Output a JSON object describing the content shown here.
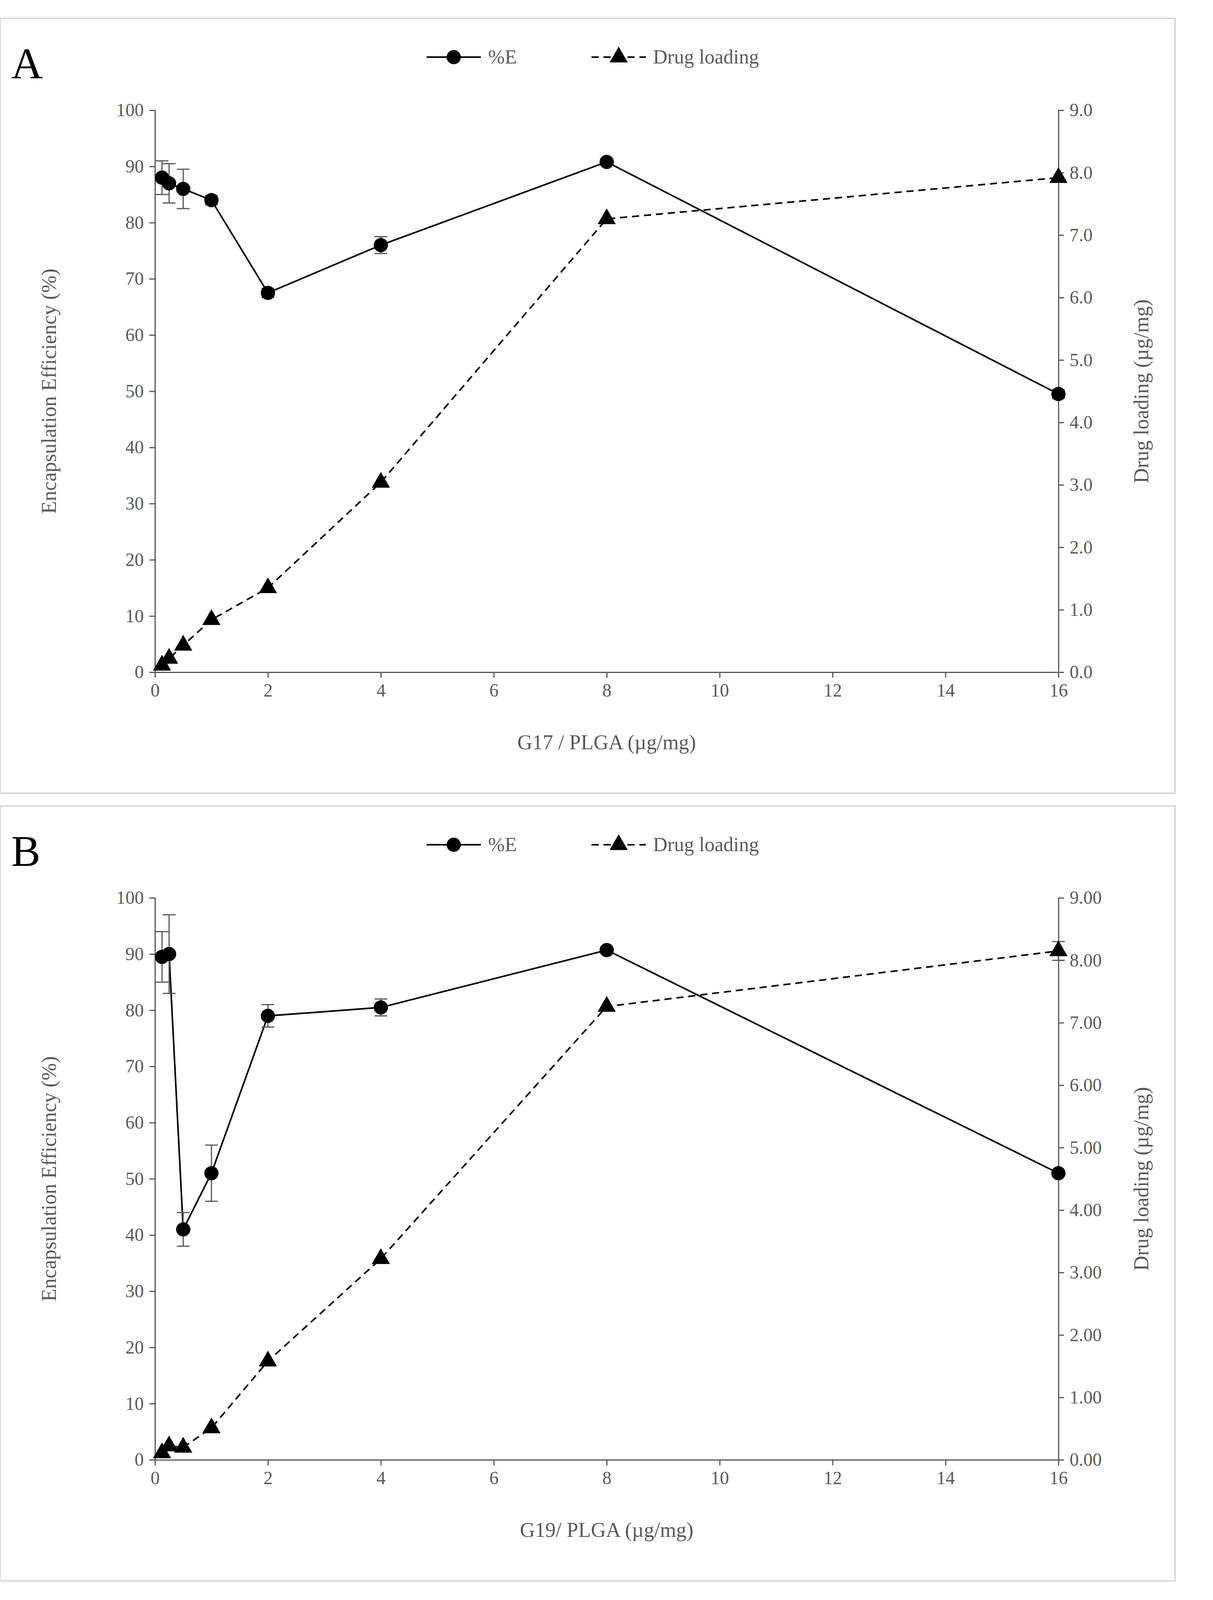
{
  "chart_data": [
    {
      "type": "line",
      "title": "A",
      "legend": "top",
      "x_label": "G17 / PLGA (µg/mg)",
      "y_label": "Encapsulation Efficiency (%)",
      "y2_label": "Drug loading (µg/mg)",
      "x": [
        0.125,
        0.25,
        0.5,
        1,
        2,
        4,
        8,
        16
      ],
      "xlim": [
        0,
        16
      ],
      "xticks": [
        0,
        2,
        4,
        6,
        8,
        10,
        12,
        14,
        16
      ],
      "ylim": [
        0,
        100
      ],
      "yticks": [
        0,
        10,
        20,
        30,
        40,
        50,
        60,
        70,
        80,
        90,
        100
      ],
      "y2lim": [
        0,
        9
      ],
      "y2ticks": [
        {
          "value": 0,
          "label": "0.0"
        },
        {
          "value": 1,
          "label": "1.0"
        },
        {
          "value": 2,
          "label": "2.0"
        },
        {
          "value": 3,
          "label": "3.0"
        },
        {
          "value": 4,
          "label": "4.0"
        },
        {
          "value": 5,
          "label": "5.0"
        },
        {
          "value": 6,
          "label": "6.0"
        },
        {
          "value": 7,
          "label": "7.0"
        },
        {
          "value": 8,
          "label": "8.0"
        },
        {
          "value": 9,
          "label": "9.0"
        }
      ],
      "series": [
        {
          "name": "%E",
          "color": "#000000",
          "marker": "circle",
          "line_style": "solid",
          "values": [
            88,
            87,
            86,
            84,
            67.5,
            76,
            90.8,
            49.5
          ],
          "errors": [
            3,
            3.5,
            3.5,
            0.8,
            0.8,
            1.5,
            0.6,
            0.8
          ]
        },
        {
          "name": "Drug loading",
          "color": "#000000",
          "marker": "triangle",
          "line_style": "dashed",
          "axis": "y2",
          "values": [
            0.11,
            0.22,
            0.43,
            0.84,
            1.35,
            3.04,
            7.26,
            7.92
          ],
          "errors": [
            null,
            null,
            null,
            null,
            null,
            null,
            null,
            null
          ]
        }
      ]
    },
    {
      "type": "line",
      "title": "B",
      "legend": "top",
      "x_label": "G19/ PLGA (µg/mg)",
      "y_label": "Encapsulation Efficiency (%)",
      "y2_label": "Drug loading (µg/mg)",
      "x": [
        0.125,
        0.25,
        0.5,
        1,
        2,
        4,
        8,
        16
      ],
      "xlim": [
        0,
        16
      ],
      "xticks": [
        0,
        2,
        4,
        6,
        8,
        10,
        12,
        14,
        16
      ],
      "ylim": [
        0,
        100
      ],
      "yticks": [
        0,
        10,
        20,
        30,
        40,
        50,
        60,
        70,
        80,
        90,
        100
      ],
      "y2lim": [
        0,
        9
      ],
      "y2ticks": [
        {
          "value": 0,
          "label": "0.00"
        },
        {
          "value": 1,
          "label": "1.00"
        },
        {
          "value": 2,
          "label": "2.00"
        },
        {
          "value": 3,
          "label": "3.00"
        },
        {
          "value": 4,
          "label": "4.00"
        },
        {
          "value": 5,
          "label": "5.00"
        },
        {
          "value": 6,
          "label": "6.00"
        },
        {
          "value": 7,
          "label": "7.00"
        },
        {
          "value": 8,
          "label": "8.00"
        },
        {
          "value": 9,
          "label": "9.00"
        }
      ],
      "series": [
        {
          "name": "%E",
          "color": "#000000",
          "marker": "circle",
          "line_style": "solid",
          "values": [
            89.5,
            90,
            41,
            51,
            79,
            80.5,
            90.7,
            51
          ],
          "errors": [
            4.5,
            7,
            3,
            5,
            2,
            1.5,
            0.5,
            0.5
          ]
        },
        {
          "name": "Drug loading",
          "color": "#000000",
          "marker": "triangle",
          "line_style": "dashed",
          "axis": "y2",
          "values": [
            0.11,
            0.22,
            0.2,
            0.51,
            1.58,
            3.22,
            7.26,
            8.15
          ],
          "errors": [
            null,
            null,
            null,
            null,
            null,
            null,
            null,
            0.15
          ]
        }
      ]
    }
  ]
}
